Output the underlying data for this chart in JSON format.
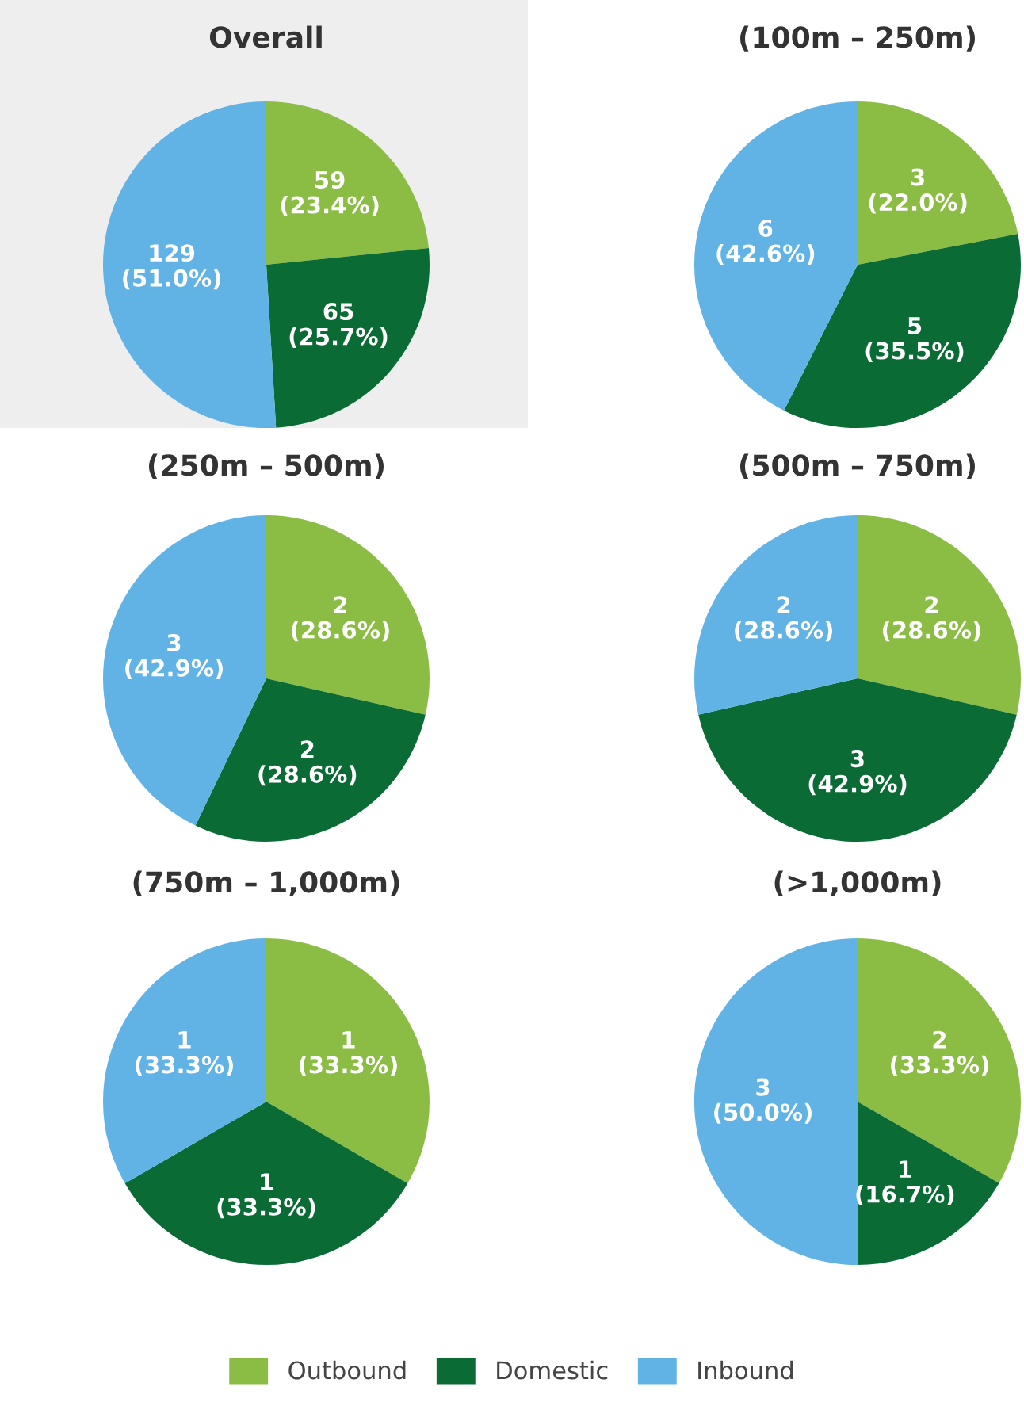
{
  "chart_data": [
    {
      "type": "pie",
      "title": "Overall",
      "categories": [
        "Outbound",
        "Domestic",
        "Inbound"
      ],
      "values": [
        23.4,
        25.7,
        51.0
      ],
      "colors": [
        "#8bbd45",
        "#0b6b35",
        "#62b3e5"
      ],
      "value_labels": [
        "59\n(23.4%)",
        "65\n(25.7%)",
        "129\n(51.0%)"
      ],
      "legend": "bottom"
    },
    {
      "type": "pie",
      "title": "(100m – 250m)",
      "categories": [
        null,
        null,
        null
      ],
      "values": [
        22.0,
        35.5,
        42.6
      ],
      "colors": [
        "#8bbd45",
        "#0b6b35",
        "#62b3e5"
      ],
      "value_labels": [
        "3\n(22.0%)",
        "5\n(35.5%)",
        "6\n(42.6%)"
      ]
    },
    {
      "type": "pie",
      "title": "(250m – 500m)",
      "categories": [
        null,
        null,
        null
      ],
      "values": [
        28.6,
        28.6,
        42.9
      ],
      "colors": [
        "#8bbd45",
        "#0b6b35",
        "#62b3e5"
      ],
      "value_labels": [
        "2\n(28.6%)",
        "2\n(28.6%)",
        "3\n(42.9%)"
      ]
    },
    {
      "type": "pie",
      "title": "(500m – 750m)",
      "categories": [
        null,
        null,
        null
      ],
      "values": [
        28.6,
        42.9,
        28.6
      ],
      "colors": [
        "#8bbd45",
        "#0b6b35",
        "#62b3e5"
      ],
      "value_labels": [
        "2\n(28.6%)",
        "3\n(42.9%)",
        "2\n(28.6%)"
      ]
    },
    {
      "type": "pie",
      "title": "(750m – 1,000m)",
      "categories": [
        null,
        null,
        null
      ],
      "values": [
        33.3,
        33.3,
        33.3
      ],
      "colors": [
        "#8bbd45",
        "#0b6b35",
        "#62b3e5"
      ],
      "value_labels": [
        "1\n(33.3%)",
        "1\n(33.3%)",
        "1\n(33.3%)"
      ]
    },
    {
      "type": "pie",
      "title": "(>1,000m)",
      "categories": [
        null,
        null,
        null
      ],
      "values": [
        33.3,
        16.7,
        50.0
      ],
      "colors": [
        "#8bbd45",
        "#0b6b35",
        "#62b3e5"
      ],
      "value_labels": [
        "2\n(33.3%)",
        "1\n(16.7%)",
        "3\n(50.0%)"
      ]
    }
  ]
}
